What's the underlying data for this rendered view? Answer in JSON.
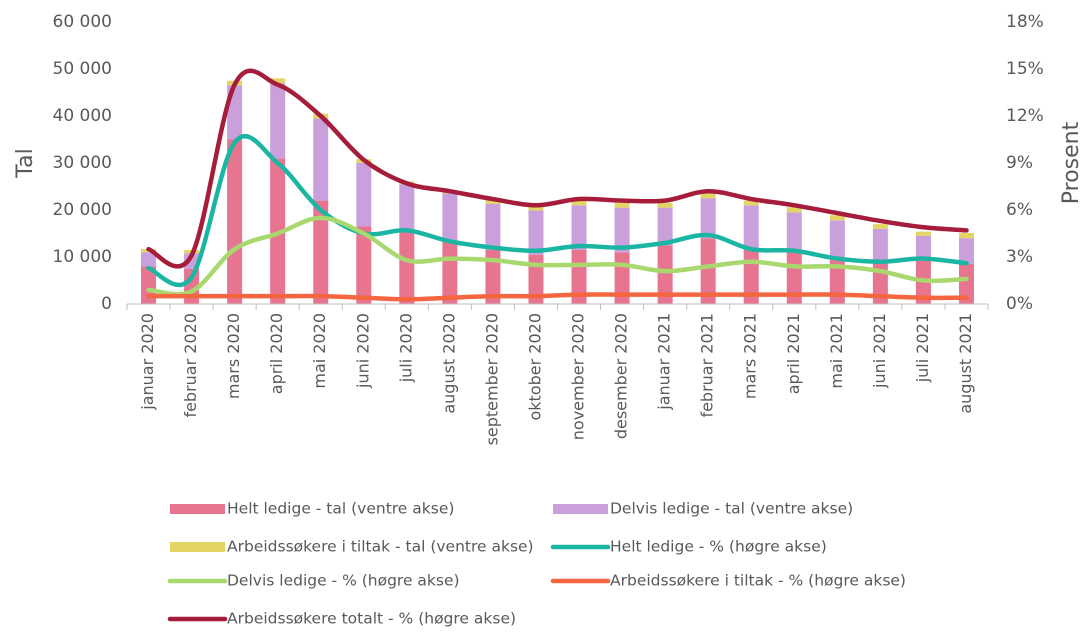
{
  "chart_data": {
    "type": "combo",
    "ylabel": "Tal",
    "y2label": "Prosent",
    "categories": [
      "januar 2020",
      "februar 2020",
      "mars 2020",
      "april 2020",
      "mai 2020",
      "juni 2020",
      "juli 2020",
      "august 2020",
      "september 2020",
      "oktober 2020",
      "november 2020",
      "desember 2020",
      "januar 2021",
      "februar 2021",
      "mars 2021",
      "april 2021",
      "mai 2021",
      "juni 2021",
      "juli 2021",
      "august 2021"
    ],
    "series": [
      {
        "name": "Helt ledige - tal (ventre akse)",
        "type": "bar",
        "color": "#e8758f",
        "values": [
          8000,
          7500,
          35000,
          31000,
          22000,
          16500,
          16000,
          13500,
          11500,
          10500,
          11500,
          11000,
          12500,
          14000,
          11500,
          11000,
          9500,
          9000,
          9500,
          8500
        ]
      },
      {
        "name": "Delvis ledige - tal (ventre akse)",
        "type": "bar",
        "color": "#c9a0dc",
        "values": [
          3000,
          3300,
          11500,
          16000,
          17500,
          13500,
          9500,
          10000,
          9800,
          9400,
          9500,
          9500,
          8000,
          8500,
          9500,
          8500,
          8300,
          7000,
          5000,
          5500
        ]
      },
      {
        "name": "Arbeidssøkere i tiltak - tal (ventre akse)",
        "type": "bar",
        "color": "#e3d464",
        "values": [
          700,
          700,
          1000,
          1000,
          1000,
          800,
          600,
          700,
          800,
          800,
          1000,
          1000,
          1000,
          1000,
          1000,
          1100,
          1100,
          1000,
          900,
          1100
        ]
      },
      {
        "name": "Helt ledige - % (høgre akse)",
        "type": "line",
        "axis": "y2",
        "color": "#1bb6a3",
        "values": [
          2.3,
          1.7,
          10.3,
          9.0,
          6.0,
          4.5,
          4.7,
          4.0,
          3.6,
          3.4,
          3.7,
          3.6,
          3.9,
          4.4,
          3.5,
          3.4,
          2.9,
          2.7,
          2.9,
          2.6
        ]
      },
      {
        "name": "Delvis ledige - % (høgre akse)",
        "type": "line",
        "axis": "y2",
        "color": "#a9d86e",
        "values": [
          0.9,
          0.8,
          3.5,
          4.5,
          5.5,
          4.5,
          2.8,
          2.9,
          2.8,
          2.5,
          2.5,
          2.5,
          2.1,
          2.4,
          2.7,
          2.4,
          2.4,
          2.1,
          1.5,
          1.6
        ]
      },
      {
        "name": "Arbeidssøkere i tiltak - % (høgre akse)",
        "type": "line",
        "axis": "y2",
        "color": "#f4663f",
        "values": [
          0.5,
          0.5,
          0.5,
          0.5,
          0.5,
          0.4,
          0.3,
          0.4,
          0.5,
          0.5,
          0.6,
          0.6,
          0.6,
          0.6,
          0.6,
          0.6,
          0.6,
          0.5,
          0.4,
          0.4
        ]
      },
      {
        "name": "Arbeidssøkere totalt - % (høgre akse)",
        "type": "line",
        "axis": "y2",
        "color": "#a51d3a",
        "values": [
          3.5,
          3.1,
          14.0,
          14.0,
          12.0,
          9.2,
          7.7,
          7.2,
          6.7,
          6.3,
          6.7,
          6.6,
          6.6,
          7.2,
          6.7,
          6.3,
          5.8,
          5.3,
          4.9,
          4.7
        ]
      }
    ],
    "ylim": [
      0,
      60000
    ],
    "yticks": [
      0,
      {
        "value": 10000,
        "label": "10 000"
      },
      {
        "value": 20000,
        "label": "20 000"
      },
      {
        "value": 30000,
        "label": "30 000"
      },
      {
        "value": 40000,
        "label": "40 000"
      },
      {
        "value": 50000,
        "label": "50 000"
      },
      {
        "value": 60000,
        "label": "60 000"
      }
    ],
    "y2lim": [
      0,
      18
    ],
    "y2ticks": [
      {
        "value": 0,
        "label": "0%"
      },
      {
        "value": 3,
        "label": "3%"
      },
      {
        "value": 6,
        "label": "6%"
      },
      {
        "value": 9,
        "label": "9%"
      },
      {
        "value": 12,
        "label": "12%"
      },
      {
        "value": 15,
        "label": "15%"
      },
      {
        "value": 18,
        "label": "18%"
      }
    ],
    "stacked": true,
    "grid": false
  }
}
